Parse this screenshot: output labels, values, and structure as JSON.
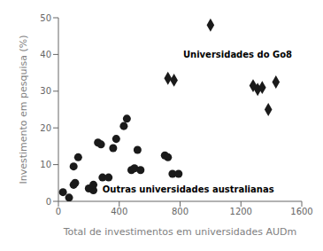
{
  "chart_data": {
    "type": "scatter",
    "xlabel": "Total de investimentos em universidades AUDm",
    "ylabel": "Investimento em pesquisa (%)",
    "xlim": [
      0,
      1600
    ],
    "ylim": [
      0,
      50
    ],
    "xticks": [
      0,
      400,
      800,
      1200,
      1600
    ],
    "yticks": [
      0,
      10,
      20,
      30,
      40,
      50
    ],
    "grid": false,
    "series": [
      {
        "marker": "diamond",
        "color": "#1a1a1a",
        "x": [
          720,
          760,
          1000,
          1280,
          1310,
          1340,
          1380,
          1430
        ],
        "values": [
          33.5,
          33.0,
          48.0,
          31.5,
          30.5,
          31.0,
          25.0,
          32.5
        ]
      },
      {
        "marker": "circle",
        "color": "#1a1a1a",
        "x": [
          30,
          70,
          100,
          100,
          110,
          130,
          200,
          230,
          230,
          260,
          280,
          290,
          330,
          360,
          380,
          430,
          450,
          480,
          500,
          520,
          540,
          700,
          720,
          750,
          790
        ],
        "values": [
          2.5,
          1.0,
          4.5,
          9.5,
          5.0,
          12.0,
          3.5,
          3.0,
          4.5,
          16.0,
          15.5,
          6.5,
          6.5,
          14.5,
          17.0,
          20.5,
          22.5,
          8.5,
          9.0,
          14.0,
          8.5,
          12.5,
          12.0,
          7.5,
          7.5
        ]
      }
    ],
    "annotations": [
      {
        "text": "Universidades do Go8",
        "x": 820,
        "y": 40
      },
      {
        "text": "Outras universidades australianas",
        "x": 290,
        "y": 3.2
      }
    ]
  }
}
